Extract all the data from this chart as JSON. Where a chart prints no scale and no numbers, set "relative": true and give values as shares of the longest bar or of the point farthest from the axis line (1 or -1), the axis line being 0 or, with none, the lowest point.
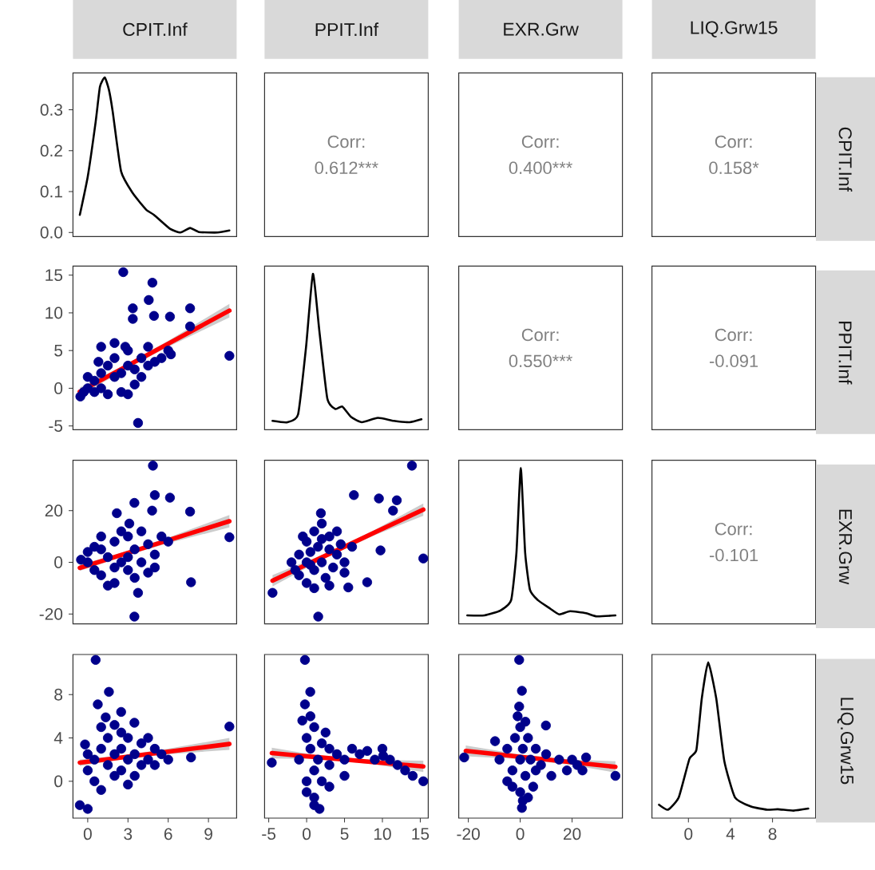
{
  "chart_data": [
    {
      "type": "line",
      "title": "CPIT.Inf",
      "color": "#000000",
      "x": [
        -0.59,
        0,
        0.59,
        0.91,
        1.27,
        1.58,
        1.86,
        2.49,
        3.36,
        4.35,
        4.94,
        6.13,
        6.92,
        7.63,
        8.3,
        9.69,
        10.56
      ],
      "values": [
        0.043,
        0.136,
        0.27,
        0.356,
        0.379,
        0.349,
        0.296,
        0.149,
        0.096,
        0.056,
        0.043,
        0.009,
        0,
        0.011,
        0.001,
        0,
        0.005
      ],
      "xlim": [
        -1.1,
        11.1
      ],
      "ylim": [
        -0.01,
        0.39
      ],
      "yticks": [
        {
          "value": 0,
          "label": "0.0"
        },
        {
          "value": 0.1,
          "label": "0.1"
        },
        {
          "value": 0.2,
          "label": "0.2"
        },
        {
          "value": 0.3,
          "label": "0.3"
        }
      ],
      "tick_labels": "y"
    },
    {
      "type": "other",
      "title": "PPIT.Inf",
      "annotations": [
        "Corr:",
        "0.612***"
      ]
    },
    {
      "type": "other",
      "title": "EXR.Grw",
      "annotations": [
        "Corr:",
        "0.400***"
      ]
    },
    {
      "type": "other",
      "title": "LIQ.Grw15",
      "y2label": "CPIT.Inf",
      "annotations": [
        "Corr:",
        "0.158*"
      ]
    },
    {
      "type": "scatter",
      "xlim": [
        -1.1,
        11.1
      ],
      "ylim": [
        -5.5,
        16.2
      ],
      "yticks": [
        -5,
        0,
        5,
        10,
        15
      ],
      "tick_labels": "y",
      "series": [
        {
          "type": "scatter",
          "marker": "circle",
          "color": "#00008b",
          "x": [
            2.65,
            4.82,
            4.55,
            3.36,
            3.36,
            4.94,
            6.13,
            7.63,
            7.63,
            10.56,
            3.75,
            -0.55,
            0,
            0.5,
            1,
            1,
            0.5,
            1.5,
            2,
            2,
            2.5,
            3,
            3,
            3.5,
            4,
            4.5,
            5,
            5.5,
            6,
            6.2,
            1,
            2,
            1.5,
            2.5,
            3.5,
            0,
            -0.3,
            4,
            3,
            0.8,
            2.8,
            4.5
          ],
          "values": [
            15.4,
            14,
            11.7,
            10.6,
            9.2,
            9.6,
            9.5,
            10.6,
            8.2,
            4.3,
            -4.6,
            -1.1,
            0,
            1,
            2,
            0,
            -0.5,
            3,
            1.5,
            4,
            2,
            3,
            5,
            2.5,
            4,
            3,
            3.5,
            4,
            5,
            4.5,
            5.5,
            6,
            -0.8,
            -0.5,
            0.5,
            1.5,
            -0.5,
            1.5,
            -0.8,
            3.5,
            5.5,
            5.5
          ]
        },
        {
          "type": "line",
          "color": "#ff0000",
          "x": [
            -0.59,
            3,
            6,
            10.56
          ],
          "values": [
            -0.44,
            3.02,
            5.91,
            10.3
          ],
          "lower": [
            -1.0,
            2.7,
            5.5,
            9.4
          ],
          "upper": [
            0.1,
            3.3,
            6.3,
            11.2
          ]
        }
      ]
    },
    {
      "type": "line",
      "relative": true,
      "color": "#000000",
      "x": [
        -4.5,
        -2.54,
        -1.13,
        -0.07,
        0.83,
        1.67,
        2.73,
        3.78,
        4.7,
        5.88,
        7.29,
        9.4,
        11.5,
        13.6,
        15.15
      ],
      "values": [
        0.057,
        0.048,
        0.098,
        0.533,
        1,
        0.638,
        0.2,
        0.133,
        0.149,
        0.081,
        0.048,
        0.076,
        0.057,
        0.048,
        0.067
      ],
      "xlim": [
        -5.55,
        16.05
      ],
      "tick_labels": false
    },
    {
      "type": "other",
      "annotations": [
        "Corr:",
        "0.550***"
      ]
    },
    {
      "type": "other",
      "y2label": "PPIT.Inf",
      "annotations": [
        "Corr:",
        "-0.091"
      ]
    },
    {
      "type": "scatter",
      "xlim": [
        -1.1,
        11.1
      ],
      "ylim": [
        -23.8,
        39.5
      ],
      "yticks": [
        -20,
        0,
        20
      ],
      "tick_labels": "y",
      "series": [
        {
          "type": "scatter",
          "marker": "circle",
          "color": "#00008b",
          "x": [
            4.86,
            3.48,
            5.0,
            6.13,
            7.63,
            10.56,
            7.7,
            3.48,
            3.75,
            2.17,
            3.1,
            4.8,
            0,
            -0.5,
            0.5,
            1,
            1,
            1.5,
            2,
            2,
            2.5,
            3,
            3,
            3.5,
            4,
            4,
            4.5,
            5,
            5.5,
            1.5,
            2.5,
            0.5,
            3.5,
            5,
            1,
            2,
            4.5,
            0,
            3,
            6
          ],
          "values": [
            37.4,
            23,
            26,
            25,
            19.6,
            9.7,
            -7.7,
            -21,
            -11.8,
            19,
            15,
            20,
            0,
            1,
            -3,
            5,
            -5,
            2,
            8,
            -8,
            0,
            10,
            -3,
            5,
            12,
            0,
            7,
            3,
            10,
            -9,
            12,
            6,
            -6,
            -2,
            10,
            -2,
            -4,
            4,
            2,
            8
          ]
        },
        {
          "type": "line",
          "color": "#ff0000",
          "x": [
            -0.59,
            3,
            6,
            10.56
          ],
          "values": [
            -2.15,
            3.66,
            8.52,
            15.9
          ],
          "lower": [
            -3.3,
            2.8,
            7.4,
            13.5
          ],
          "upper": [
            -1.0,
            4.5,
            9.6,
            18.3
          ]
        }
      ]
    },
    {
      "type": "scatter",
      "xlim": [
        -5.55,
        16.05
      ],
      "ylim": [
        -23.8,
        39.5
      ],
      "tick_labels": false,
      "series": [
        {
          "type": "scatter",
          "marker": "circle",
          "color": "#00008b",
          "x": [
            -4.5,
            1.53,
            6.24,
            9.54,
            11.9,
            13.9,
            15.4,
            9.75,
            7.99,
            5.5,
            1.88,
            11.4,
            -2,
            -1,
            -1,
            0,
            0,
            0,
            0.5,
            1,
            1,
            1.5,
            2,
            2,
            2.5,
            3,
            3,
            3.5,
            4,
            4,
            4.5,
            5,
            5,
            -0.5,
            1,
            2,
            3,
            0.5,
            6,
            -1.5
          ],
          "values": [
            -11.8,
            -21,
            26,
            24.7,
            24,
            37.4,
            1.5,
            4.6,
            -7.7,
            -9.7,
            19,
            20,
            0,
            3,
            -5,
            0,
            8,
            -8,
            4,
            -3,
            12,
            6,
            0,
            15,
            -6,
            5,
            10,
            -2,
            3,
            12,
            7,
            -4,
            0,
            10,
            -10,
            9,
            -9,
            -1,
            6,
            -3
          ]
        },
        {
          "type": "line",
          "color": "#ff0000",
          "x": [
            -4.5,
            2,
            9,
            15.4
          ],
          "values": [
            -7.08,
            1.9,
            11.57,
            20.4
          ],
          "lower": [
            -9.3,
            1.0,
            10.5,
            18.0
          ],
          "upper": [
            -4.9,
            2.8,
            12.6,
            22.8
          ]
        }
      ]
    },
    {
      "type": "line",
      "relative": true,
      "color": "#000000",
      "x": [
        -20.4,
        -13.8,
        -7.6,
        -3.5,
        -1.45,
        0.22,
        1.9,
        3.75,
        6.8,
        10.9,
        15.0,
        19.2,
        25.4,
        29.5,
        36.7
      ],
      "values": [
        0.054,
        0.054,
        0.086,
        0.152,
        0.457,
        1,
        0.457,
        0.219,
        0.152,
        0.105,
        0.061,
        0.081,
        0.068,
        0.048,
        0.054
      ],
      "xlim": [
        -23.7,
        39.4
      ],
      "tick_labels": false
    },
    {
      "type": "other",
      "y2label": "EXR.Grw",
      "annotations": [
        "Corr:",
        "-0.101"
      ]
    },
    {
      "type": "scatter",
      "xlim": [
        -1.1,
        11.1
      ],
      "ylim": [
        -3.4,
        11.7
      ],
      "xticks": [
        0,
        3,
        6,
        9
      ],
      "yticks": [
        0,
        4,
        8
      ],
      "series": [
        {
          "type": "scatter",
          "marker": "circle",
          "color": "#00008b",
          "x": [
            0.59,
            1.58,
            0.75,
            1.34,
            2.49,
            3.48,
            10.56,
            7.7,
            -0.59,
            0,
            -0.2,
            0,
            0.5,
            0.5,
            1,
            1,
            1.5,
            1.5,
            2,
            2,
            2.5,
            2.5,
            3,
            3,
            3.5,
            3.5,
            4,
            4,
            4.5,
            4.5,
            5,
            5.5,
            6,
            1,
            2,
            0,
            3,
            2.5,
            5
          ],
          "values": [
            11.2,
            8.25,
            7.1,
            5.9,
            6.4,
            5.4,
            5.05,
            2.2,
            -2.2,
            -2.55,
            3.4,
            1,
            2,
            0,
            3,
            -0.8,
            1.5,
            4,
            2.5,
            0.5,
            3,
            1,
            2,
            4,
            2.5,
            0.5,
            3.5,
            1.5,
            4,
            2,
            3,
            2.5,
            2,
            5,
            5.2,
            2.5,
            -0.3,
            4.5,
            1.5
          ]
        },
        {
          "type": "line",
          "color": "#ff0000",
          "x": [
            -0.59,
            3,
            6,
            10.56
          ],
          "values": [
            1.72,
            2.27,
            2.73,
            3.44
          ],
          "lower": [
            1.4,
            2.1,
            2.5,
            2.9
          ],
          "upper": [
            2.0,
            2.45,
            3.0,
            4.0
          ]
        }
      ]
    },
    {
      "type": "scatter",
      "xlim": [
        -5.55,
        16.05
      ],
      "ylim": [
        -3.4,
        11.7
      ],
      "xticks": [
        -5,
        0,
        5,
        10,
        15
      ],
      "tick_labels": "x",
      "series": [
        {
          "type": "scatter",
          "marker": "circle",
          "color": "#00008b",
          "x": [
            -0.22,
            0.48,
            -0.22,
            -0.57,
            -4.6,
            1.0,
            1.7,
            15.4,
            10.1,
            -1,
            0,
            0,
            0,
            0.5,
            1,
            1,
            1.5,
            2,
            2,
            2.5,
            3,
            3,
            4,
            5,
            6,
            7,
            8,
            9,
            10,
            11,
            12,
            13,
            14,
            1,
            0.5,
            3,
            5
          ],
          "values": [
            11.2,
            8.25,
            7.1,
            5.6,
            1.72,
            -2.2,
            -2.55,
            0,
            2.35,
            2,
            4,
            0,
            -1,
            3,
            1,
            5,
            2,
            3.5,
            0,
            4.5,
            1.5,
            3,
            2.5,
            2,
            3,
            2.5,
            2.8,
            2,
            3,
            2,
            1.5,
            1,
            0.5,
            -1.5,
            6,
            -0.5,
            0.5
          ]
        },
        {
          "type": "line",
          "color": "#ff0000",
          "x": [
            -4.6,
            2,
            9,
            15.4
          ],
          "values": [
            2.6,
            2.19,
            1.76,
            1.37
          ],
          "lower": [
            2.1,
            2.05,
            1.55,
            0.85
          ],
          "upper": [
            3.1,
            2.33,
            1.97,
            1.9
          ]
        }
      ]
    },
    {
      "type": "scatter",
      "xlim": [
        -23.7,
        39.4
      ],
      "ylim": [
        -3.4,
        11.7
      ],
      "xticks": [
        -20,
        0,
        20
      ],
      "tick_labels": "x",
      "series": [
        {
          "type": "scatter",
          "marker": "circle",
          "color": "#00008b",
          "x": [
            -0.4,
            0.65,
            -0.4,
            -21.6,
            36.7,
            0.65,
            -9.7,
            9.9,
            25.4,
            -8,
            -5,
            -5,
            -3,
            -2,
            0,
            0,
            0,
            1,
            2,
            3,
            4,
            5,
            6,
            8,
            10,
            12,
            15,
            18,
            20,
            22,
            24,
            -1,
            1,
            2,
            -3,
            6,
            3
          ],
          "values": [
            11.2,
            8.35,
            6.9,
            2.2,
            0.5,
            -2.46,
            3.7,
            5.15,
            2.2,
            2,
            3,
            0,
            1,
            4,
            2,
            -1,
            5,
            3,
            0.5,
            4,
            2,
            -0.5,
            3,
            1.5,
            2.5,
            0.5,
            2,
            1,
            2,
            1.5,
            1,
            6,
            -1.8,
            5.5,
            -0.5,
            1,
            -1.5
          ]
        },
        {
          "type": "line",
          "color": "#ff0000",
          "x": [
            -21,
            0,
            20,
            36.7
          ],
          "values": [
            2.8,
            2.26,
            1.75,
            1.33
          ],
          "lower": [
            2.3,
            2.05,
            1.5,
            0.8
          ],
          "upper": [
            3.3,
            2.47,
            2.0,
            1.85
          ]
        }
      ]
    },
    {
      "type": "line",
      "relative": true,
      "color": "#000000",
      "y2label": "LIQ.Grw15",
      "x": [
        -2.8,
        -1.94,
        -0.92,
        0.1,
        0.76,
        1.27,
        1.88,
        2.65,
        3.41,
        4.43,
        5.96,
        7.49,
        8.5,
        10.0,
        11.4
      ],
      "values": [
        0.086,
        0.054,
        0.133,
        0.381,
        0.438,
        0.767,
        1,
        0.767,
        0.368,
        0.133,
        0.074,
        0.054,
        0.057,
        0.048,
        0.061
      ],
      "xlim": [
        -3.47,
        12.1
      ],
      "xticks": [
        0,
        4,
        8
      ],
      "tick_labels": "x"
    }
  ]
}
